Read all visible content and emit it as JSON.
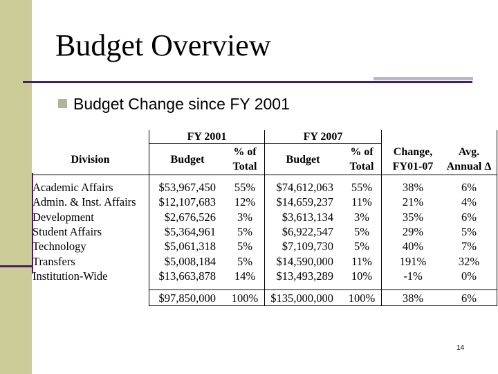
{
  "slide": {
    "title": "Budget Overview",
    "bullet": "Budget Change since FY 2001",
    "page_number": "14"
  },
  "table": {
    "group_headers": {
      "fy2001": "FY 2001",
      "fy2007": "FY 2007"
    },
    "col_headers": {
      "division": "Division",
      "budget_2001": "Budget",
      "pct_2001_line1": "% of",
      "pct_2001_line2": "Total",
      "budget_2007": "Budget",
      "pct_2007_line1": "% of",
      "pct_2007_line2": "Total",
      "change_line1": "Change,",
      "change_line2": "FY01-07",
      "avg_line1": "Avg.",
      "avg_line2": "Annual Δ"
    },
    "rows": [
      [
        "Academic Affairs",
        "$53,967,450",
        "55%",
        "$74,612,063",
        "55%",
        "38%",
        "6%"
      ],
      [
        "Admin. & Inst. Affairs",
        "$12,107,683",
        "12%",
        "$14,659,237",
        "11%",
        "21%",
        "4%"
      ],
      [
        "Development",
        "$2,676,526",
        "3%",
        "$3,613,134",
        "3%",
        "35%",
        "6%"
      ],
      [
        "Student Affairs",
        "$5,364,961",
        "5%",
        "$6,922,547",
        "5%",
        "29%",
        "5%"
      ],
      [
        "Technology",
        "$5,061,318",
        "5%",
        "$7,109,730",
        "5%",
        "40%",
        "7%"
      ],
      [
        "Transfers",
        "$5,008,184",
        "5%",
        "$14,590,000",
        "11%",
        "191%",
        "32%"
      ],
      [
        "Institution-Wide",
        "$13,663,878",
        "14%",
        "$13,493,289",
        "10%",
        "-1%",
        "0%"
      ]
    ],
    "total": [
      "",
      "$97,850,000",
      "100%",
      "$135,000,000",
      "100%",
      "38%",
      "6%"
    ]
  },
  "colors": {
    "sidebar": "#cccc99",
    "accent": "#4d1a66",
    "bullet": "#b3b399"
  }
}
